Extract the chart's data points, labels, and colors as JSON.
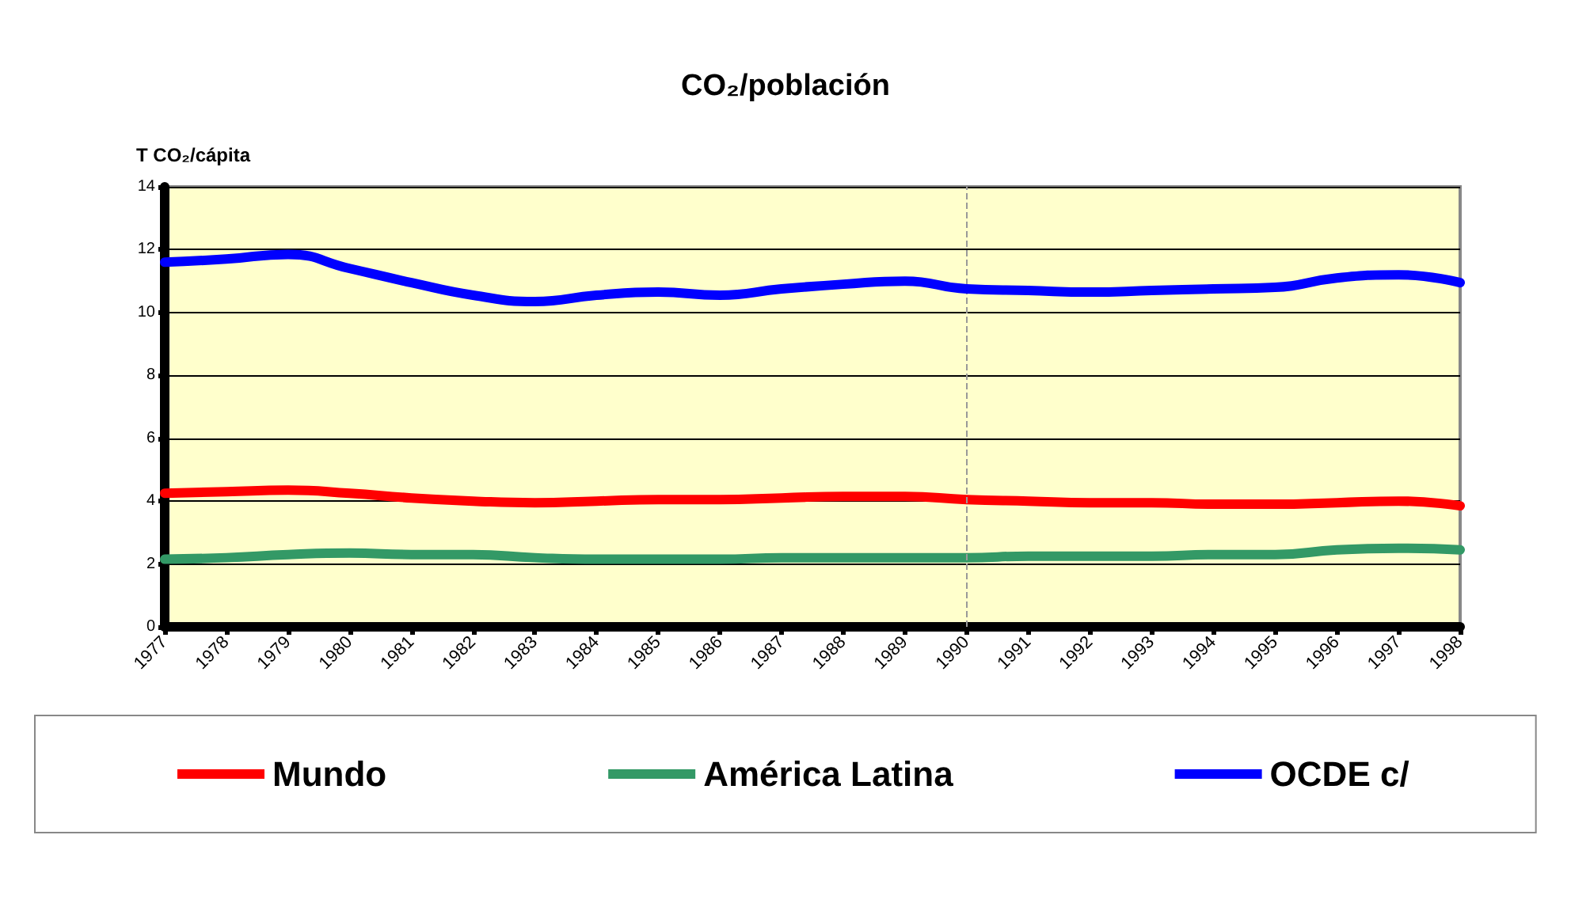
{
  "chart_data": {
    "type": "line",
    "title": "CO₂/población",
    "ylabel": "T CO₂/cápita",
    "categories": [
      "1977",
      "1978",
      "1979",
      "1980",
      "1981",
      "1982",
      "1983",
      "1984",
      "1985",
      "1986",
      "1987",
      "1988",
      "1989",
      "1990",
      "1991",
      "1992",
      "1993",
      "1994",
      "1995",
      "1996",
      "1997",
      "1998"
    ],
    "series": [
      {
        "name": "Mundo",
        "color": "#ff0000",
        "values": [
          4.25,
          4.3,
          4.35,
          4.25,
          4.1,
          4.0,
          3.95,
          4.0,
          4.05,
          4.05,
          4.1,
          4.15,
          4.15,
          4.05,
          4.0,
          3.95,
          3.95,
          3.9,
          3.9,
          3.95,
          4.0,
          3.85
        ]
      },
      {
        "name": "América Latina",
        "color": "#339966",
        "values": [
          2.15,
          2.2,
          2.3,
          2.35,
          2.3,
          2.3,
          2.2,
          2.15,
          2.15,
          2.15,
          2.2,
          2.2,
          2.2,
          2.2,
          2.25,
          2.25,
          2.25,
          2.3,
          2.3,
          2.45,
          2.5,
          2.45
        ]
      },
      {
        "name": "OCDE c/",
        "color": "#0000ff",
        "values": [
          11.6,
          11.7,
          11.85,
          11.4,
          10.95,
          10.55,
          10.35,
          10.55,
          10.65,
          10.55,
          10.75,
          10.9,
          11.0,
          10.75,
          10.7,
          10.65,
          10.7,
          10.75,
          10.8,
          11.1,
          11.2,
          10.95
        ]
      }
    ],
    "ylim": [
      0,
      14
    ],
    "yticks": [
      0,
      2,
      4,
      6,
      8,
      10,
      12,
      14
    ],
    "grid": "y",
    "legend": "bottom",
    "marker": "none",
    "line_style": "solid",
    "ref_lines": [
      {
        "axis": "x",
        "value": "1990",
        "color": "#999999",
        "line_style": "dashed"
      }
    ]
  }
}
